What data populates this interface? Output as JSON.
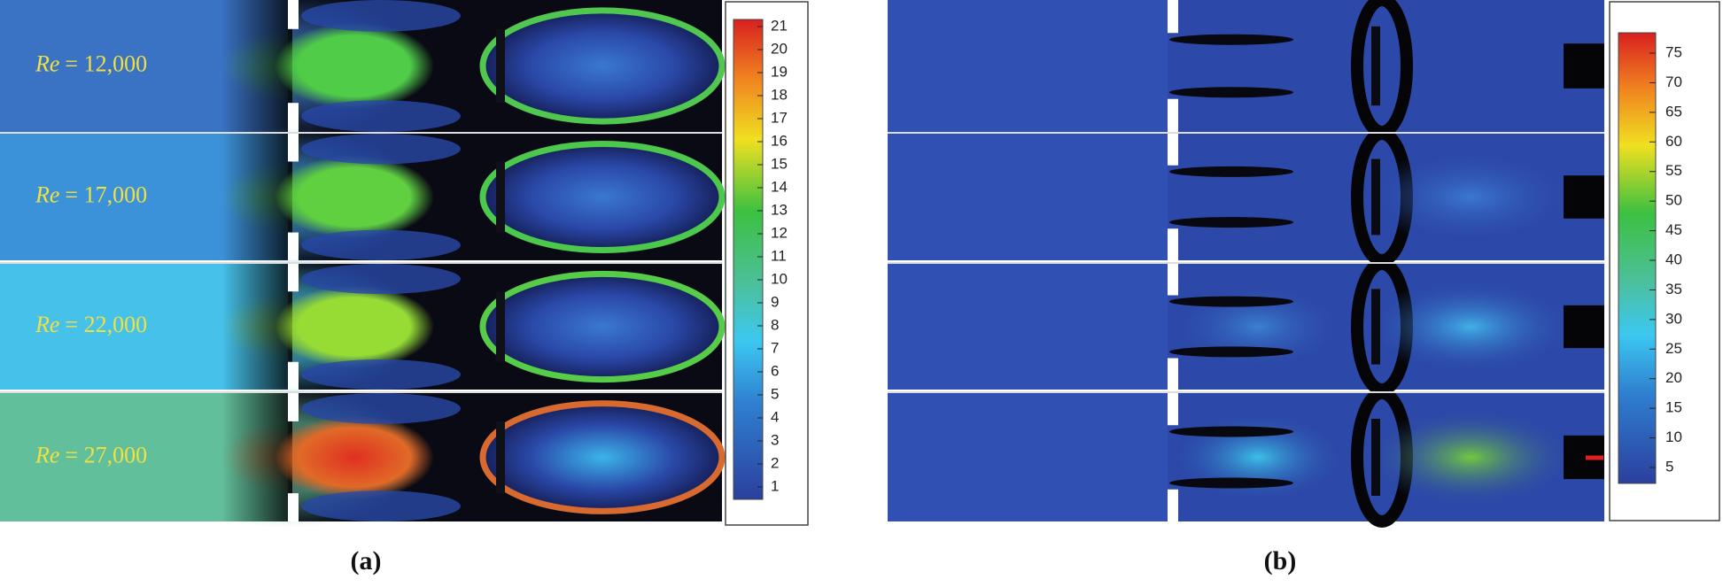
{
  "panel_a": {
    "caption": "(a)",
    "rows": [
      {
        "symbol": "Re",
        "value": "= 12,000"
      },
      {
        "symbol": "Re",
        "value": "= 17,000"
      },
      {
        "symbol": "Re",
        "value": "= 22,000"
      },
      {
        "symbol": "Re",
        "value": "= 27,000"
      }
    ],
    "colorbar": [
      "21",
      "20",
      "19",
      "18",
      "17",
      "16",
      "15",
      "14",
      "13",
      "12",
      "11",
      "10",
      "9",
      "8",
      "7",
      "6",
      "5",
      "4",
      "3",
      "2",
      "1"
    ]
  },
  "panel_b": {
    "caption": "(b)",
    "colorbar": [
      "75",
      "70",
      "65",
      "60",
      "55",
      "50",
      "45",
      "40",
      "35",
      "30",
      "25",
      "20",
      "15",
      "10",
      "5"
    ]
  }
}
